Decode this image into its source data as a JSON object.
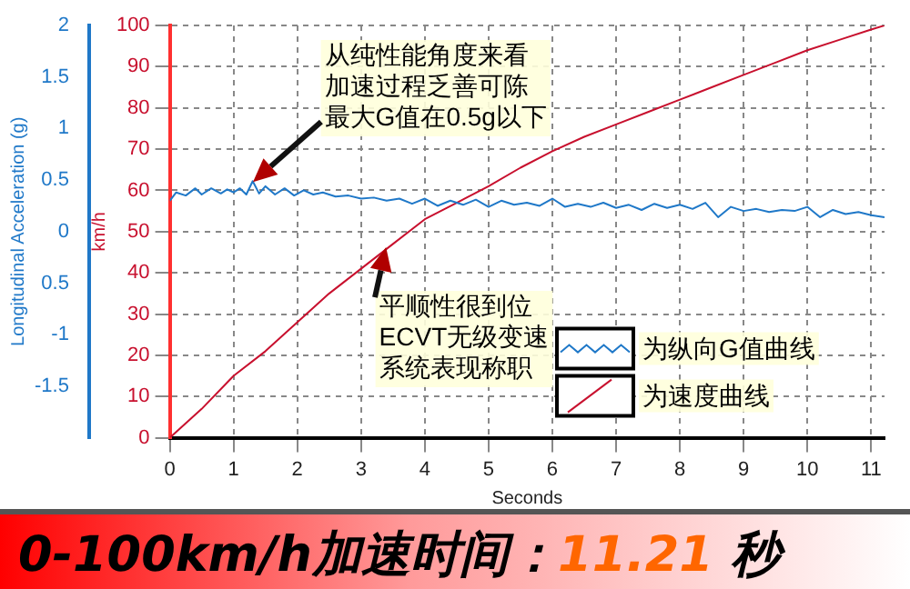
{
  "chart_data": {
    "type": "line",
    "title": "0-100km/h加速时间：11.21 秒",
    "xlabel": "Seconds",
    "ylabel": "km/h",
    "y2label": "Longitudinal Acceleration (g)",
    "xlim": [
      0,
      11.21
    ],
    "xticks": [
      0,
      1,
      2,
      3,
      4,
      5,
      6,
      7,
      8,
      9,
      10,
      11
    ],
    "ylim": [
      0,
      100
    ],
    "yticks": [
      0,
      10,
      20,
      30,
      40,
      50,
      60,
      70,
      80,
      90,
      100
    ],
    "y2lim": [
      -2,
      2
    ],
    "y2ticks": [
      {
        "value": -2,
        "label": null
      },
      -1.5,
      -1,
      {
        "value": -0.5,
        "label": "0.5"
      },
      0,
      0.5,
      1,
      1.5,
      2
    ],
    "grid": true,
    "legend": "bottom right",
    "marker": "none",
    "line_style": "solid",
    "series": [
      {
        "name": "为纵向G值曲线",
        "color": "#1f78c8",
        "axis": "y2",
        "x": [
          0,
          0.1,
          0.25,
          0.4,
          0.5,
          0.65,
          0.8,
          0.9,
          1.0,
          1.1,
          1.2,
          1.3,
          1.4,
          1.5,
          1.65,
          1.8,
          1.95,
          2.1,
          2.25,
          2.4,
          2.6,
          2.8,
          3.0,
          3.2,
          3.4,
          3.6,
          3.8,
          4.0,
          4.2,
          4.4,
          4.6,
          4.8,
          5.0,
          5.2,
          5.4,
          5.6,
          5.8,
          6.0,
          6.2,
          6.4,
          6.6,
          6.8,
          7.0,
          7.2,
          7.4,
          7.6,
          7.8,
          8.0,
          8.2,
          8.4,
          8.6,
          8.8,
          9.0,
          9.2,
          9.4,
          9.6,
          9.8,
          10.0,
          10.2,
          10.4,
          10.6,
          10.8,
          11.0,
          11.21
        ],
        "values": [
          0.3,
          0.38,
          0.35,
          0.42,
          0.36,
          0.42,
          0.37,
          0.41,
          0.38,
          0.42,
          0.36,
          0.49,
          0.37,
          0.44,
          0.36,
          0.42,
          0.35,
          0.4,
          0.36,
          0.38,
          0.34,
          0.35,
          0.32,
          0.33,
          0.3,
          0.32,
          0.27,
          0.32,
          0.25,
          0.3,
          0.26,
          0.31,
          0.24,
          0.3,
          0.26,
          0.28,
          0.25,
          0.32,
          0.24,
          0.27,
          0.24,
          0.28,
          0.23,
          0.26,
          0.21,
          0.27,
          0.23,
          0.26,
          0.22,
          0.28,
          0.14,
          0.24,
          0.2,
          0.22,
          0.19,
          0.21,
          0.2,
          0.24,
          0.14,
          0.21,
          0.17,
          0.19,
          0.16,
          0.14
        ]
      },
      {
        "name": "为速度曲线",
        "color": "#c8102e",
        "x": [
          0,
          0.5,
          1,
          1.5,
          2,
          2.5,
          3,
          3.5,
          4,
          4.5,
          5,
          5.5,
          6,
          6.5,
          7,
          7.5,
          8,
          8.5,
          9,
          9.5,
          10,
          10.5,
          11,
          11.21
        ],
        "values": [
          0,
          7,
          15,
          21,
          28,
          35,
          41,
          47,
          53,
          57,
          61,
          65.5,
          69.5,
          73,
          76,
          79,
          82,
          85,
          88,
          91,
          94,
          96.5,
          99,
          100
        ]
      }
    ],
    "annotations": [
      "从纯性能角度来看加速过程乏善可陈最大G值在0.5g以下",
      {
        "text": "平顺性很到位ECVT无级变速系统表现称职",
        "x": 3.4,
        "y": 46
      }
    ]
  }
}
